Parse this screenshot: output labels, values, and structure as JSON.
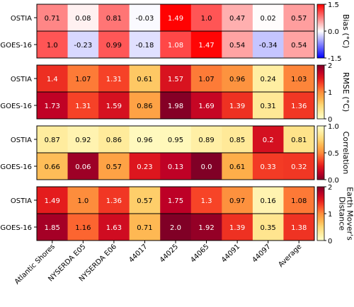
{
  "chart_data": {
    "type": "heatmap",
    "columns": [
      "Atlantic Shores",
      "NYSERDA E05",
      "NYSERDA E06",
      "44017",
      "44025",
      "44065",
      "44091",
      "44097",
      "Average"
    ],
    "rows": [
      "OSTIA",
      "GOES-16"
    ],
    "panels": [
      {
        "metric": "Bias",
        "colorbar_label": "Bias (°C)",
        "colormap": "bwr",
        "vmin": -1.5,
        "vmax": 1.5,
        "colorbar_ticks": [
          "1.5",
          "0.0",
          "-1.5"
        ],
        "values": [
          [
            "0.71",
            "0.08",
            "0.81",
            "-0.03",
            "1.49",
            "1.0",
            "0.47",
            "0.02",
            "0.57"
          ],
          [
            "1.0",
            "-0.23",
            "0.99",
            "-0.18",
            "1.08",
            "1.47",
            "0.54",
            "-0.34",
            "0.54"
          ]
        ]
      },
      {
        "metric": "RMSE",
        "colorbar_label": "RMSE (°C)",
        "colormap": "YlOrRd",
        "vmin": 0,
        "vmax": 2,
        "colorbar_ticks": [
          "2",
          "1",
          "0"
        ],
        "values": [
          [
            "1.4",
            "1.07",
            "1.31",
            "0.61",
            "1.57",
            "1.07",
            "0.96",
            "0.24",
            "1.03"
          ],
          [
            "1.73",
            "1.31",
            "1.59",
            "0.86",
            "1.98",
            "1.69",
            "1.39",
            "0.31",
            "1.36"
          ]
        ]
      },
      {
        "metric": "Correlation",
        "colorbar_label": "Correlation",
        "colormap": "YlOrRd_r",
        "vmin": 0,
        "vmax": 1,
        "colorbar_ticks": [
          "1.0",
          "0.5",
          "0.0"
        ],
        "values": [
          [
            "0.87",
            "0.92",
            "0.86",
            "0.96",
            "0.95",
            "0.89",
            "0.85",
            "0.2",
            "0.81"
          ],
          [
            "0.66",
            "0.06",
            "0.57",
            "0.23",
            "0.13",
            "0.0",
            "0.61",
            "0.33",
            "0.32"
          ]
        ]
      },
      {
        "metric": "Earth Mover's Distance",
        "colorbar_label": "Earth Mover's Distance",
        "colormap": "YlOrRd",
        "vmin": 0,
        "vmax": 2,
        "colorbar_ticks": [
          "2",
          "1",
          "0"
        ],
        "values": [
          [
            "1.49",
            "1.0",
            "1.36",
            "0.57",
            "1.75",
            "1.3",
            "0.97",
            "0.16",
            "1.08"
          ],
          [
            "1.85",
            "1.16",
            "1.63",
            "0.71",
            "2.0",
            "1.92",
            "1.39",
            "0.35",
            "1.38"
          ]
        ]
      }
    ]
  }
}
